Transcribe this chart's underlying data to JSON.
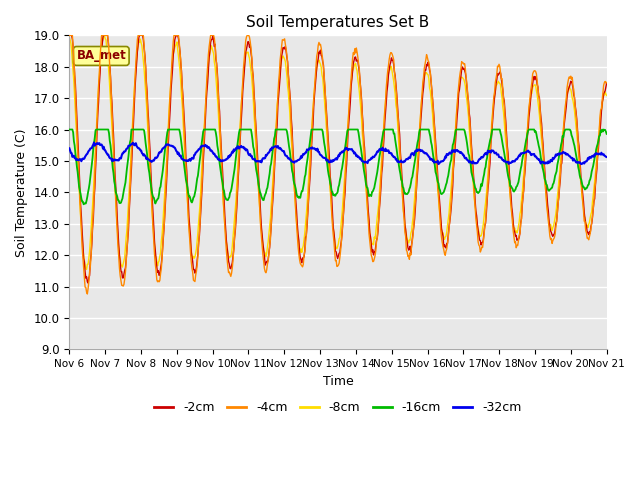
{
  "title": "Soil Temperatures Set B",
  "xlabel": "Time",
  "ylabel": "Soil Temperature (C)",
  "ylim": [
    9.0,
    19.0
  ],
  "yticks": [
    9.0,
    10.0,
    11.0,
    12.0,
    13.0,
    14.0,
    15.0,
    16.0,
    17.0,
    18.0,
    19.0
  ],
  "plot_bg_color": "#e8e8e8",
  "fig_bg_color": "#ffffff",
  "colors": {
    "-2cm": "#cc0000",
    "-4cm": "#ff8800",
    "-8cm": "#ffdd00",
    "-16cm": "#00bb00",
    "-32cm": "#0000ee"
  },
  "annotation_text": "BA_met",
  "annotation_bg": "#ffff99",
  "annotation_border": "#8b0000",
  "n_days": 15,
  "start_day": 6,
  "legend_entries": [
    "-2cm",
    "-4cm",
    "-8cm",
    "-16cm",
    "-32cm"
  ]
}
